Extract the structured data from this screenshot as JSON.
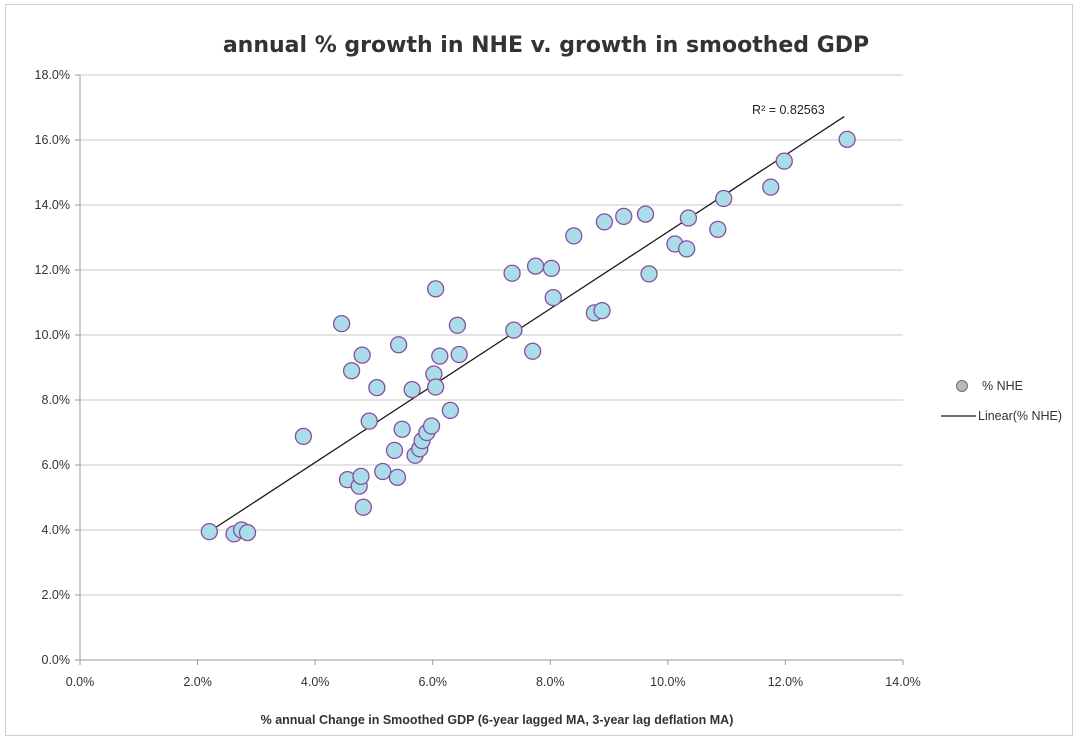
{
  "chart_data": {
    "type": "scatter",
    "title": "annual % growth in NHE  v.  growth in smoothed GDP",
    "xlabel": "% annual Change in Smoothed GDP (6-year lagged MA, 3-year lag deflation MA)",
    "ylabel": "",
    "xlim": [
      0.0,
      14.0
    ],
    "ylim": [
      0.0,
      18.0
    ],
    "x_ticks": [
      0,
      2,
      4,
      6,
      8,
      10,
      12,
      14
    ],
    "y_ticks": [
      0,
      2,
      4,
      6,
      8,
      10,
      12,
      14,
      16,
      18
    ],
    "x_tick_labels": [
      "0.0%",
      "2.0%",
      "4.0%",
      "6.0%",
      "8.0%",
      "10.0%",
      "12.0%",
      "14.0%"
    ],
    "y_tick_labels": [
      "0.0%",
      "2.0%",
      "4.0%",
      "6.0%",
      "8.0%",
      "10.0%",
      "12.0%",
      "14.0%",
      "16.0%",
      "18.0%"
    ],
    "grid": "horizontal",
    "legend_position": "right",
    "series": [
      {
        "name": "% NHE",
        "kind": "scatter",
        "color": "#a8dde9",
        "edge_color": "#8b4c9a",
        "points": [
          [
            2.2,
            3.95
          ],
          [
            2.62,
            3.88
          ],
          [
            2.75,
            4.0
          ],
          [
            2.85,
            3.92
          ],
          [
            3.8,
            6.88
          ],
          [
            4.45,
            10.35
          ],
          [
            4.55,
            5.55
          ],
          [
            4.62,
            8.9
          ],
          [
            4.75,
            5.35
          ],
          [
            4.78,
            5.65
          ],
          [
            4.8,
            9.38
          ],
          [
            4.82,
            4.7
          ],
          [
            4.92,
            7.35
          ],
          [
            5.05,
            8.38
          ],
          [
            5.15,
            5.8
          ],
          [
            5.35,
            6.45
          ],
          [
            5.4,
            5.62
          ],
          [
            5.42,
            9.7
          ],
          [
            5.48,
            7.1
          ],
          [
            5.65,
            8.32
          ],
          [
            5.7,
            6.3
          ],
          [
            5.78,
            6.5
          ],
          [
            5.82,
            6.75
          ],
          [
            5.9,
            7.0
          ],
          [
            5.98,
            7.2
          ],
          [
            6.02,
            8.8
          ],
          [
            6.05,
            8.4
          ],
          [
            6.05,
            11.42
          ],
          [
            6.12,
            9.35
          ],
          [
            6.3,
            7.68
          ],
          [
            6.42,
            10.3
          ],
          [
            6.45,
            9.4
          ],
          [
            7.35,
            11.9
          ],
          [
            7.38,
            10.15
          ],
          [
            7.7,
            9.5
          ],
          [
            7.75,
            12.12
          ],
          [
            8.02,
            12.05
          ],
          [
            8.05,
            11.15
          ],
          [
            8.4,
            13.05
          ],
          [
            8.75,
            10.68
          ],
          [
            8.88,
            10.75
          ],
          [
            8.92,
            13.48
          ],
          [
            9.25,
            13.65
          ],
          [
            9.62,
            13.72
          ],
          [
            9.68,
            11.88
          ],
          [
            10.12,
            12.8
          ],
          [
            10.32,
            12.65
          ],
          [
            10.35,
            13.6
          ],
          [
            10.85,
            13.25
          ],
          [
            10.95,
            14.2
          ],
          [
            11.75,
            14.55
          ],
          [
            11.98,
            15.35
          ],
          [
            13.05,
            16.02
          ]
        ]
      },
      {
        "name": "Linear(% NHE)",
        "kind": "trendline",
        "color": "#1a1a1a",
        "points": [
          [
            2.2,
            3.95
          ],
          [
            13.0,
            16.72
          ]
        ]
      }
    ],
    "annotations": [
      {
        "text": "R² = 0.82563",
        "x": 12.05,
        "y": 16.8
      }
    ]
  }
}
